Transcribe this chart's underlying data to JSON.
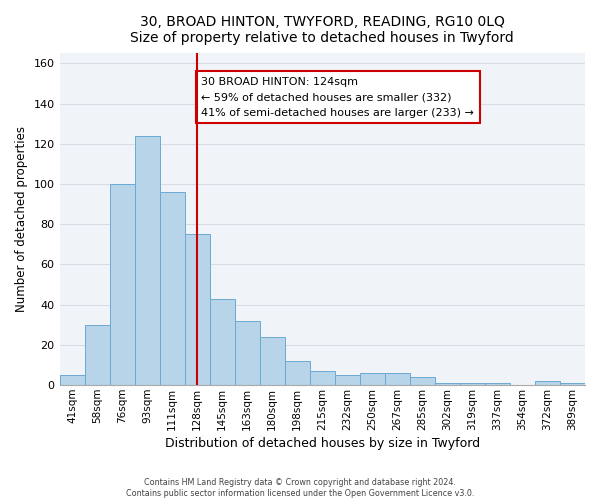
{
  "title": "30, BROAD HINTON, TWYFORD, READING, RG10 0LQ",
  "subtitle": "Size of property relative to detached houses in Twyford",
  "xlabel": "Distribution of detached houses by size in Twyford",
  "ylabel": "Number of detached properties",
  "bar_labels": [
    "41sqm",
    "58sqm",
    "76sqm",
    "93sqm",
    "111sqm",
    "128sqm",
    "145sqm",
    "163sqm",
    "180sqm",
    "198sqm",
    "215sqm",
    "232sqm",
    "250sqm",
    "267sqm",
    "285sqm",
    "302sqm",
    "319sqm",
    "337sqm",
    "354sqm",
    "372sqm",
    "389sqm"
  ],
  "bar_values": [
    5,
    30,
    100,
    124,
    96,
    75,
    43,
    32,
    24,
    12,
    7,
    5,
    6,
    6,
    4,
    1,
    1,
    1,
    0,
    2,
    1
  ],
  "bar_color": "#b8d4e8",
  "bar_edge_color": "#6aaad4",
  "reference_line_color": "#cc0000",
  "annotation_text": "30 BROAD HINTON: 124sqm\n← 59% of detached houses are smaller (332)\n41% of semi-detached houses are larger (233) →",
  "annotation_box_color": "#ffffff",
  "annotation_box_edge": "#cc0000",
  "ylim": [
    0,
    165
  ],
  "yticks": [
    0,
    20,
    40,
    60,
    80,
    100,
    120,
    140,
    160
  ],
  "footer1": "Contains HM Land Registry data © Crown copyright and database right 2024.",
  "footer2": "Contains public sector information licensed under the Open Government Licence v3.0."
}
